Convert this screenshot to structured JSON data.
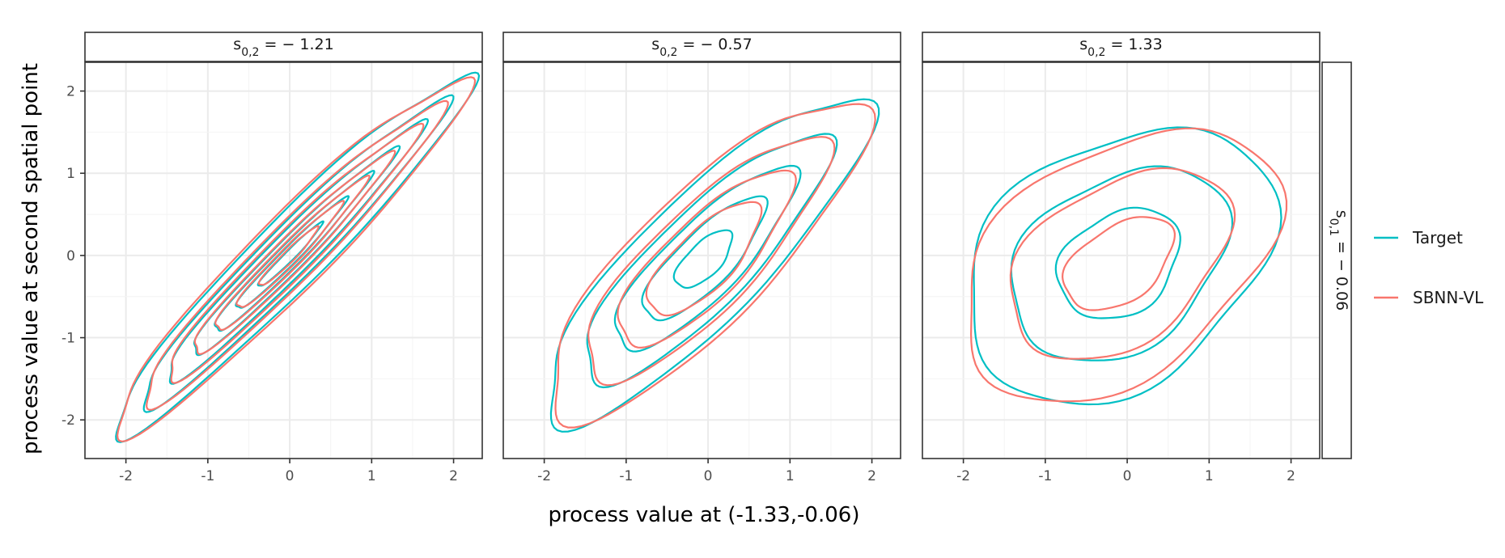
{
  "chart_data": {
    "type": "contour",
    "xlabel": "process value at (-1.33,-0.06)",
    "ylabel": "process value at second spatial point",
    "x_ticks": [
      -2,
      -1,
      0,
      1,
      2
    ],
    "x_tick_labels": [
      "-2",
      "-1",
      "0",
      "1",
      "2"
    ],
    "y_ticks": [
      -2,
      -1,
      0,
      1,
      2
    ],
    "y_tick_labels": [
      "-2",
      "-1",
      "0",
      "1",
      "2"
    ],
    "xlim": [
      -2.5,
      2.35
    ],
    "ylim": [
      -2.47,
      2.35
    ],
    "grid": true,
    "legend_position": "right",
    "row_strip": {
      "sub": "0,1",
      "value": "0.06",
      "sign": "−"
    },
    "series": [
      {
        "name": "Target",
        "color": "#00BFC4"
      },
      {
        "name": "SBNN-VL",
        "color": "#F8766D"
      }
    ],
    "panels": [
      {
        "strip": {
          "sub": "0,2",
          "value": "1.21",
          "sign": "−"
        },
        "contours": [
          {
            "series": "Target",
            "center": [
              0,
              0
            ],
            "angle_deg": 45,
            "semi_axes": [
              [
                3.05,
                0.42
              ],
              [
                2.62,
                0.32
              ],
              [
                2.2,
                0.25
              ],
              [
                1.75,
                0.19
              ],
              [
                1.35,
                0.14
              ],
              [
                0.95,
                0.1
              ],
              [
                0.55,
                0.06
              ]
            ]
          },
          {
            "series": "SBNN-VL",
            "center": [
              -0.02,
              -0.02
            ],
            "angle_deg": 45,
            "semi_axes": [
              [
                3.0,
                0.45
              ],
              [
                2.55,
                0.34
              ],
              [
                2.15,
                0.27
              ],
              [
                1.7,
                0.2
              ],
              [
                1.3,
                0.15
              ],
              [
                0.9,
                0.11
              ],
              [
                0.5,
                0.07
              ]
            ]
          }
        ]
      },
      {
        "strip": {
          "sub": "0,2",
          "value": "0.57",
          "sign": "−"
        },
        "contours": [
          {
            "series": "Target",
            "center": [
              -0.05,
              -0.05
            ],
            "angle_deg": 45,
            "semi_axes": [
              [
                2.7,
                0.75
              ],
              [
                2.05,
                0.58
              ],
              [
                1.5,
                0.45
              ],
              [
                1.0,
                0.33
              ],
              [
                0.45,
                0.2
              ]
            ]
          },
          {
            "series": "SBNN-VL",
            "center": [
              -0.05,
              -0.05
            ],
            "angle_deg": 45,
            "semi_axes": [
              [
                2.62,
                0.8
              ],
              [
                2.0,
                0.62
              ],
              [
                1.42,
                0.48
              ],
              [
                0.9,
                0.35
              ]
            ]
          }
        ]
      },
      {
        "strip": {
          "sub": "0,2",
          "value": "1.33",
          "sign": ""
        },
        "contours": [
          {
            "series": "Target",
            "center": [
              -0.1,
              -0.1
            ],
            "angle_deg": 35,
            "semi_axes": [
              [
                2.05,
                1.45
              ],
              [
                1.45,
                1.02
              ],
              [
                0.8,
                0.6
              ]
            ]
          },
          {
            "series": "SBNN-VL",
            "center": [
              -0.1,
              -0.1
            ],
            "angle_deg": 35,
            "semi_axes": [
              [
                2.15,
                1.35
              ],
              [
                1.5,
                0.95
              ],
              [
                0.75,
                0.45
              ]
            ]
          }
        ]
      }
    ]
  }
}
